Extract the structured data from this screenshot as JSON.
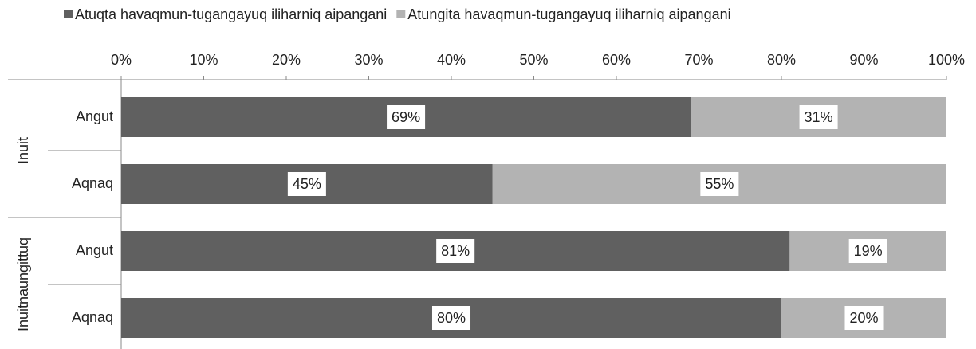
{
  "chart_data": {
    "type": "stacked_bar_horizontal",
    "groups": [
      {
        "label": "Inuit",
        "categories": [
          "Angut",
          "Aqnaq"
        ]
      },
      {
        "label": "Inuitnaungittuq",
        "categories": [
          "Angut",
          "Aqnaq"
        ]
      }
    ],
    "series": [
      {
        "name": "Atuqta havaqmun-tugangayuq iliharniq aipangani",
        "color": "#606060",
        "values": [
          69,
          45,
          81,
          80
        ],
        "value_labels": [
          "69%",
          "45%",
          "81%",
          "80%"
        ]
      },
      {
        "name": "Atungita havaqmun-tugangayuq iliharniq aipangani",
        "color": "#b3b3b3",
        "values": [
          31,
          55,
          19,
          20
        ],
        "value_labels": [
          "31%",
          "55%",
          "19%",
          "20%"
        ]
      }
    ],
    "xlim": [
      0,
      100
    ],
    "xticks": [
      {
        "value": 0,
        "label": "0%"
      },
      {
        "value": 10,
        "label": "10%"
      },
      {
        "value": 20,
        "label": "20%"
      },
      {
        "value": 30,
        "label": "30%"
      },
      {
        "value": 40,
        "label": "40%"
      },
      {
        "value": 50,
        "label": "50%"
      },
      {
        "value": 60,
        "label": "60%"
      },
      {
        "value": 70,
        "label": "70%"
      },
      {
        "value": 80,
        "label": "80%"
      },
      {
        "value": 90,
        "label": "90%"
      },
      {
        "value": 100,
        "label": "100%"
      }
    ],
    "legend": "top"
  }
}
